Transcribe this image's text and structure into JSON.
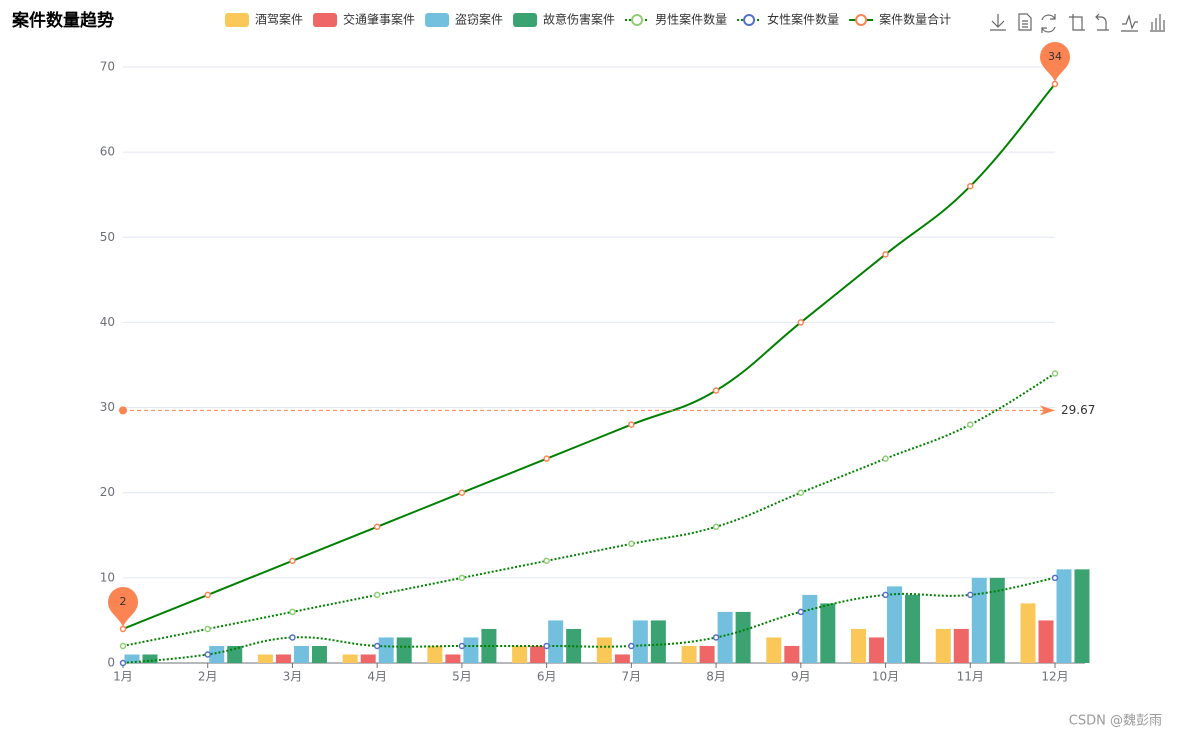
{
  "chart_data": {
    "type": "bar-line",
    "title": "案件数量趋势",
    "categories": [
      "1月",
      "2月",
      "3月",
      "4月",
      "5月",
      "6月",
      "7月",
      "8月",
      "9月",
      "10月",
      "11月",
      "12月"
    ],
    "ylim": [
      0,
      70
    ],
    "yticks": [
      0,
      10,
      20,
      30,
      40,
      50,
      60,
      70
    ],
    "grid": true,
    "series": [
      {
        "name": "酒驾案件",
        "type": "bar",
        "color": "#fac858",
        "values": [
          0,
          0,
          1,
          1,
          2,
          2,
          3,
          2,
          3,
          4,
          4,
          7
        ]
      },
      {
        "name": "交通肇事案件",
        "type": "bar",
        "color": "#ee6666",
        "values": [
          0,
          0,
          1,
          1,
          1,
          2,
          1,
          2,
          2,
          3,
          4,
          5
        ]
      },
      {
        "name": "盗窃案件",
        "type": "bar",
        "color": "#73c0de",
        "values": [
          1,
          2,
          2,
          3,
          3,
          5,
          5,
          6,
          8,
          9,
          10,
          11
        ]
      },
      {
        "name": "故意伤害案件",
        "type": "bar",
        "color": "#3ba272",
        "values": [
          1,
          2,
          2,
          3,
          4,
          4,
          5,
          6,
          7,
          8,
          10,
          11
        ]
      },
      {
        "name": "男性案件数量",
        "type": "line",
        "color": "#91cc75",
        "line_color": "#008000",
        "line_style": "dotted",
        "values": [
          2,
          4,
          6,
          8,
          10,
          12,
          14,
          16,
          20,
          24,
          28,
          34
        ]
      },
      {
        "name": "女性案件数量",
        "type": "line",
        "color": "#5470c6",
        "line_color": "#008000",
        "line_style": "dotted",
        "values": [
          0,
          1,
          3,
          2,
          2,
          2,
          2,
          3,
          6,
          8,
          8,
          10
        ]
      },
      {
        "name": "案件数量合计",
        "type": "line",
        "color": "#fc8452",
        "line_color": "#008000",
        "line_style": "solid",
        "values": [
          4,
          8,
          12,
          16,
          20,
          24,
          28,
          32,
          40,
          48,
          56,
          68
        ]
      }
    ],
    "mark_points": [
      {
        "category": "1月",
        "value": 2
      },
      {
        "category": "12月",
        "value": 34
      }
    ],
    "mark_line": {
      "value": 29.67
    },
    "watermark": "CSDN @魏彭雨"
  }
}
